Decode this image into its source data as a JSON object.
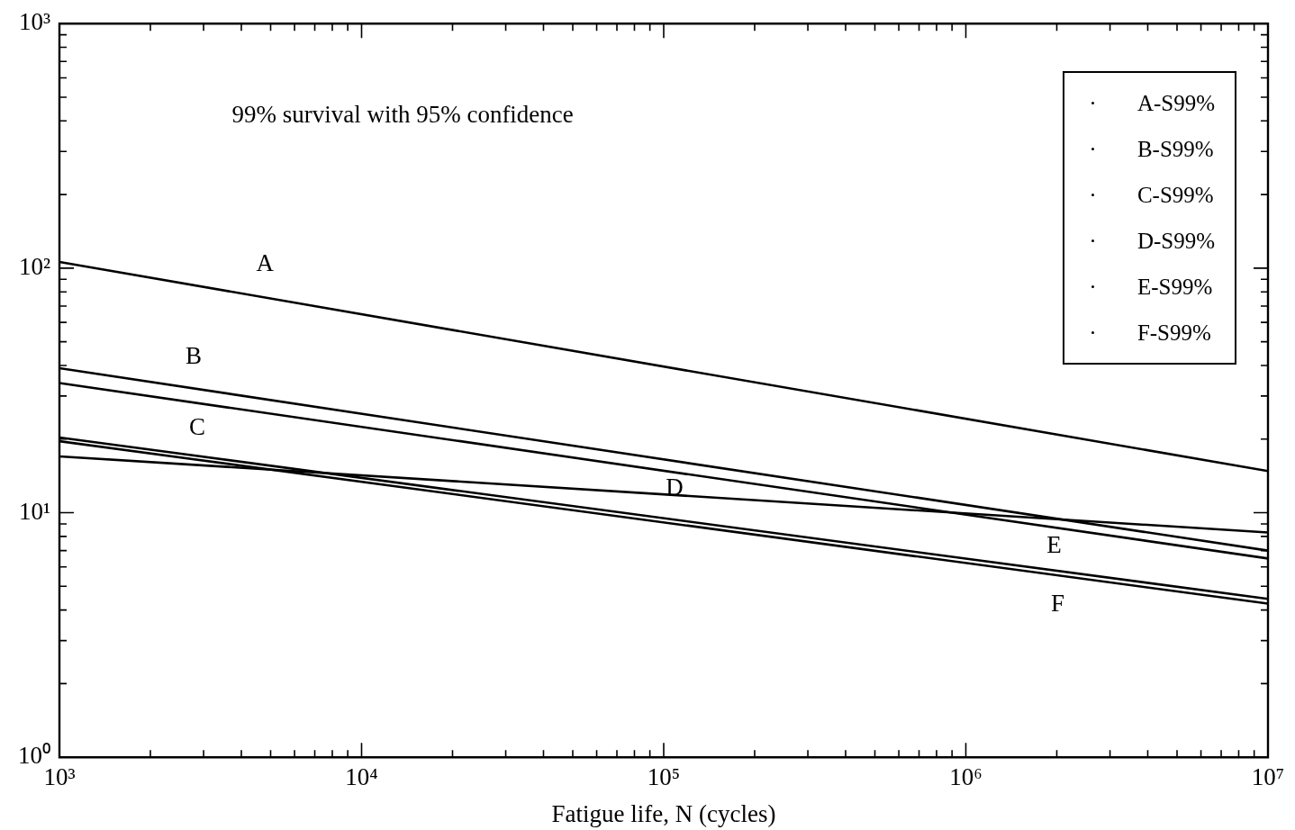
{
  "chart_data": {
    "type": "line",
    "xlabel": "Fatigue life, N (cycles)",
    "x": [
      1000,
      10000000
    ],
    "series": [
      {
        "name": "A-S99%",
        "color": "#000000",
        "values": [
          106,
          14.8
        ]
      },
      {
        "name": "B-S99%",
        "color": "#000000",
        "values": [
          39,
          7.0
        ]
      },
      {
        "name": "C-S99%",
        "color": "#000000",
        "values": [
          20.3,
          4.44
        ]
      },
      {
        "name": "D-S99%",
        "color": "#000000",
        "values": [
          17.0,
          8.3
        ]
      },
      {
        "name": "E-S99%",
        "color": "#000000",
        "values": [
          33.9,
          6.5
        ]
      },
      {
        "name": "F-S99%",
        "color": "#000000",
        "values": [
          19.6,
          4.25
        ]
      }
    ],
    "log": "xy",
    "xlim": [
      1000,
      10000000
    ],
    "ylim": [
      1,
      1000
    ],
    "xticks": [
      {
        "value": 1000,
        "label": "10³"
      },
      {
        "value": 2000,
        "label": null
      },
      {
        "value": 3000,
        "label": null
      },
      {
        "value": 4000,
        "label": null
      },
      {
        "value": 5000,
        "label": null
      },
      {
        "value": 6000,
        "label": null
      },
      {
        "value": 7000,
        "label": null
      },
      {
        "value": 8000,
        "label": null
      },
      {
        "value": 9000,
        "label": null
      },
      {
        "value": 10000,
        "label": "10⁴"
      },
      {
        "value": 20000,
        "label": null
      },
      {
        "value": 30000,
        "label": null
      },
      {
        "value": 40000,
        "label": null
      },
      {
        "value": 50000,
        "label": null
      },
      {
        "value": 60000,
        "label": null
      },
      {
        "value": 70000,
        "label": null
      },
      {
        "value": 80000,
        "label": null
      },
      {
        "value": 90000,
        "label": null
      },
      {
        "value": 100000,
        "label": "10⁵"
      },
      {
        "value": 200000,
        "label": null
      },
      {
        "value": 300000,
        "label": null
      },
      {
        "value": 400000,
        "label": null
      },
      {
        "value": 500000,
        "label": null
      },
      {
        "value": 600000,
        "label": null
      },
      {
        "value": 700000,
        "label": null
      },
      {
        "value": 800000,
        "label": null
      },
      {
        "value": 900000,
        "label": null
      },
      {
        "value": 1000000,
        "label": "10⁶"
      },
      {
        "value": 2000000,
        "label": null
      },
      {
        "value": 3000000,
        "label": null
      },
      {
        "value": 4000000,
        "label": null
      },
      {
        "value": 5000000,
        "label": null
      },
      {
        "value": 6000000,
        "label": null
      },
      {
        "value": 7000000,
        "label": null
      },
      {
        "value": 8000000,
        "label": null
      },
      {
        "value": 9000000,
        "label": null
      },
      {
        "value": 10000000,
        "label": "10⁷"
      }
    ],
    "yticks": [
      {
        "value": 1,
        "label": "10⁰"
      },
      {
        "value": 2,
        "label": null
      },
      {
        "value": 3,
        "label": null
      },
      {
        "value": 4,
        "label": null
      },
      {
        "value": 5,
        "label": null
      },
      {
        "value": 6,
        "label": null
      },
      {
        "value": 7,
        "label": null
      },
      {
        "value": 8,
        "label": null
      },
      {
        "value": 9,
        "label": null
      },
      {
        "value": 10,
        "label": "10¹"
      },
      {
        "value": 20,
        "label": null
      },
      {
        "value": 30,
        "label": null
      },
      {
        "value": 40,
        "label": null
      },
      {
        "value": 50,
        "label": null
      },
      {
        "value": 60,
        "label": null
      },
      {
        "value": 70,
        "label": null
      },
      {
        "value": 80,
        "label": null
      },
      {
        "value": 90,
        "label": null
      },
      {
        "value": 100,
        "label": "10²"
      },
      {
        "value": 200,
        "label": null
      },
      {
        "value": 300,
        "label": null
      },
      {
        "value": 400,
        "label": null
      },
      {
        "value": 500,
        "label": null
      },
      {
        "value": 600,
        "label": null
      },
      {
        "value": 700,
        "label": null
      },
      {
        "value": 800,
        "label": null
      },
      {
        "value": 900,
        "label": null
      },
      {
        "value": 1000,
        "label": "10³"
      }
    ],
    "grid": false,
    "legend": "top right",
    "marker": "none",
    "line_style": "solid",
    "annotations": [
      "99% survival with 95% confidence",
      "A",
      "B",
      "C",
      "D",
      "E",
      "F"
    ]
  }
}
